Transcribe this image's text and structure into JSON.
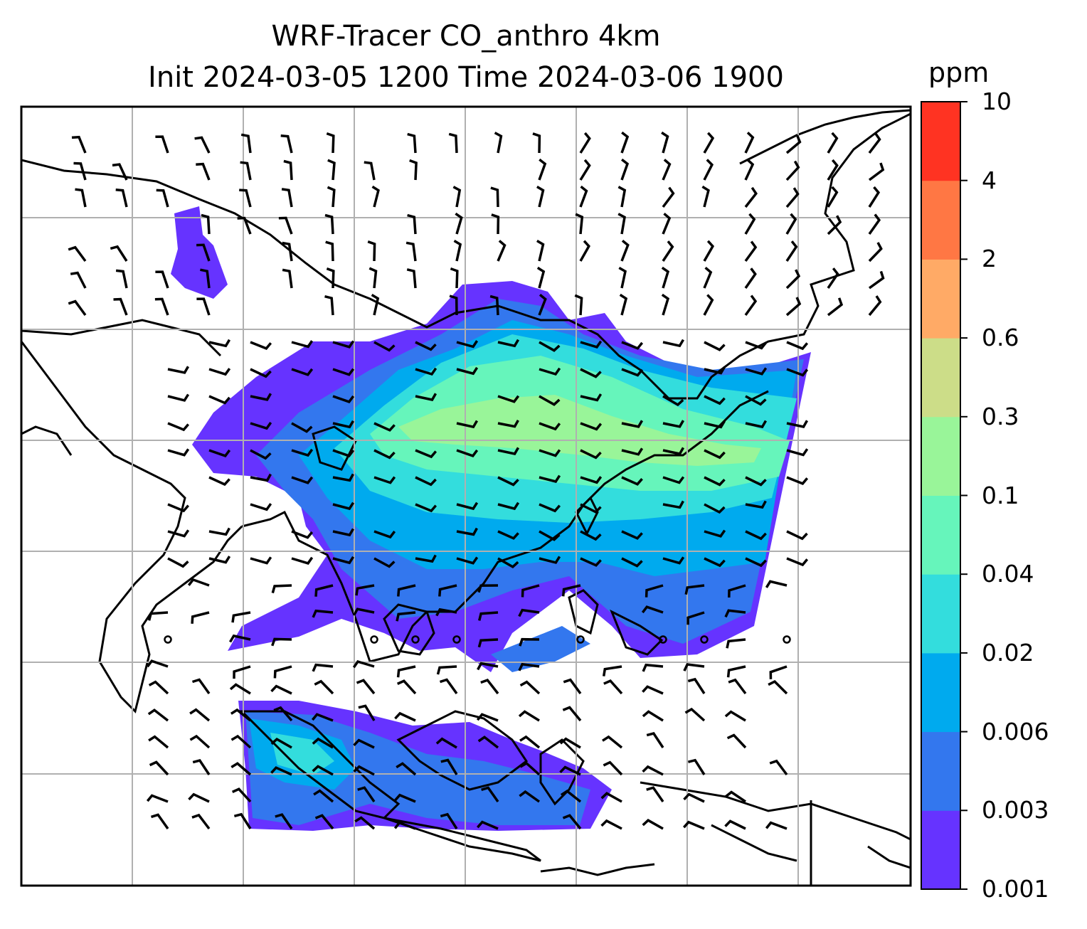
{
  "title": {
    "line1": "WRF-Tracer CO_anthro 4km",
    "line2": "Init 2024-03-05 1200 Time 2024-03-06 1900"
  },
  "colorbar": {
    "unit": "ppm",
    "ticks": [
      "0.001",
      "0.003",
      "0.006",
      "0.02",
      "0.04",
      "0.1",
      "0.3",
      "0.6",
      "2",
      "4",
      "10"
    ],
    "colors": [
      "#6633ff",
      "#3377ee",
      "#00aaee",
      "#33dddd",
      "#66f5bb",
      "#99f599",
      "#ccdd88",
      "#ffaa66",
      "#ff7744",
      "#ff3322"
    ]
  },
  "map": {
    "gridlines": true,
    "wind_barbs": true
  }
}
